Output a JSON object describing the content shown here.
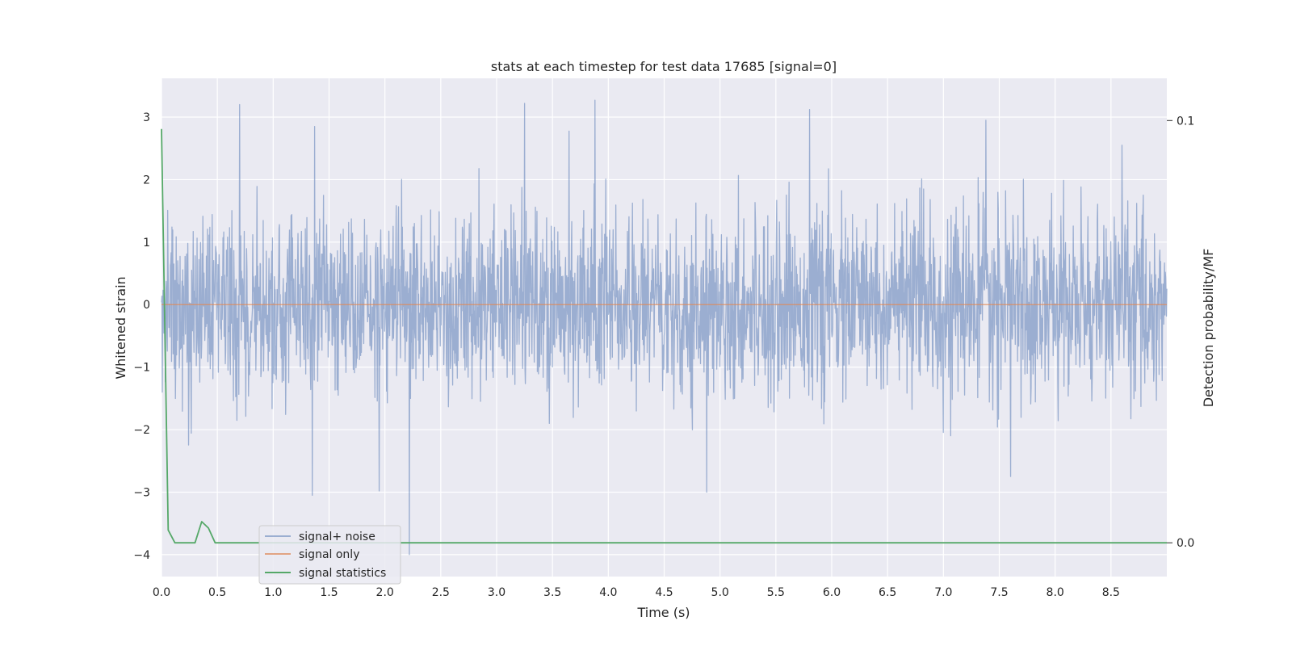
{
  "chart_data": {
    "type": "line",
    "title": "stats at each timestep for test data 17685 [signal=0]",
    "xlabel": "Time (s)",
    "ylabel": "Whitened strain",
    "ylabel_right": "Detection probability/MF",
    "xlim": [
      0.0,
      9.0
    ],
    "ylim": [
      -4.35,
      3.62
    ],
    "ylim_right": [
      -0.008,
      0.11
    ],
    "x_ticks": [
      0.0,
      0.5,
      1.0,
      1.5,
      2.0,
      2.5,
      3.0,
      3.5,
      4.0,
      4.5,
      5.0,
      5.5,
      6.0,
      6.5,
      7.0,
      7.5,
      8.0,
      8.5
    ],
    "x_tick_labels": [
      "0.0",
      "0.5",
      "1.0",
      "1.5",
      "2.0",
      "2.5",
      "3.0",
      "3.5",
      "4.0",
      "4.5",
      "5.0",
      "5.5",
      "6.0",
      "6.5",
      "7.0",
      "7.5",
      "8.0",
      "8.5"
    ],
    "y_ticks": [
      3,
      2,
      1,
      0,
      -1,
      -2,
      -3,
      -4
    ],
    "y_tick_labels": [
      "3",
      "2",
      "1",
      "0",
      "−1",
      "−2",
      "−3",
      "−4"
    ],
    "y_ticks_right": [
      0.1,
      0.0
    ],
    "y_tick_labels_right": [
      "0.1",
      "0.0"
    ],
    "grid": true,
    "legend_position": "lower-left",
    "colors": {
      "background": "#eaeaf2",
      "grid": "#ffffff",
      "noise": "#4c72b0",
      "signal": "#dd8452",
      "statistics": "#55a868",
      "text": "#262626"
    },
    "series": [
      {
        "name": "signal+ noise",
        "axis": "left",
        "noise_std": 0.72,
        "duration": 9.0,
        "spikes": [
          {
            "x": 0.7,
            "y": 3.2
          },
          {
            "x": 1.35,
            "y": -3.05
          },
          {
            "x": 1.37,
            "y": 2.85
          },
          {
            "x": 1.95,
            "y": -2.98
          },
          {
            "x": 2.22,
            "y": -4.0
          },
          {
            "x": 3.25,
            "y": 3.22
          },
          {
            "x": 3.88,
            "y": 3.27
          },
          {
            "x": 4.88,
            "y": -3.0
          },
          {
            "x": 5.8,
            "y": 3.12
          },
          {
            "x": 7.38,
            "y": 2.95
          },
          {
            "x": 7.6,
            "y": -2.75
          },
          {
            "x": 8.6,
            "y": 2.55
          }
        ]
      },
      {
        "name": "signal only",
        "axis": "left",
        "x": [
          0.0,
          9.0
        ],
        "y": [
          0.0,
          0.0
        ]
      },
      {
        "name": "signal statistics",
        "axis": "right",
        "x": [
          0.0,
          0.06,
          0.12,
          0.18,
          0.24,
          0.3,
          0.36,
          0.42,
          0.48,
          0.54,
          9.0
        ],
        "y": [
          0.098,
          0.003,
          0.0,
          0.0,
          0.0,
          0.0,
          0.005,
          0.0035,
          0.0,
          0.0,
          0.0
        ]
      }
    ]
  }
}
